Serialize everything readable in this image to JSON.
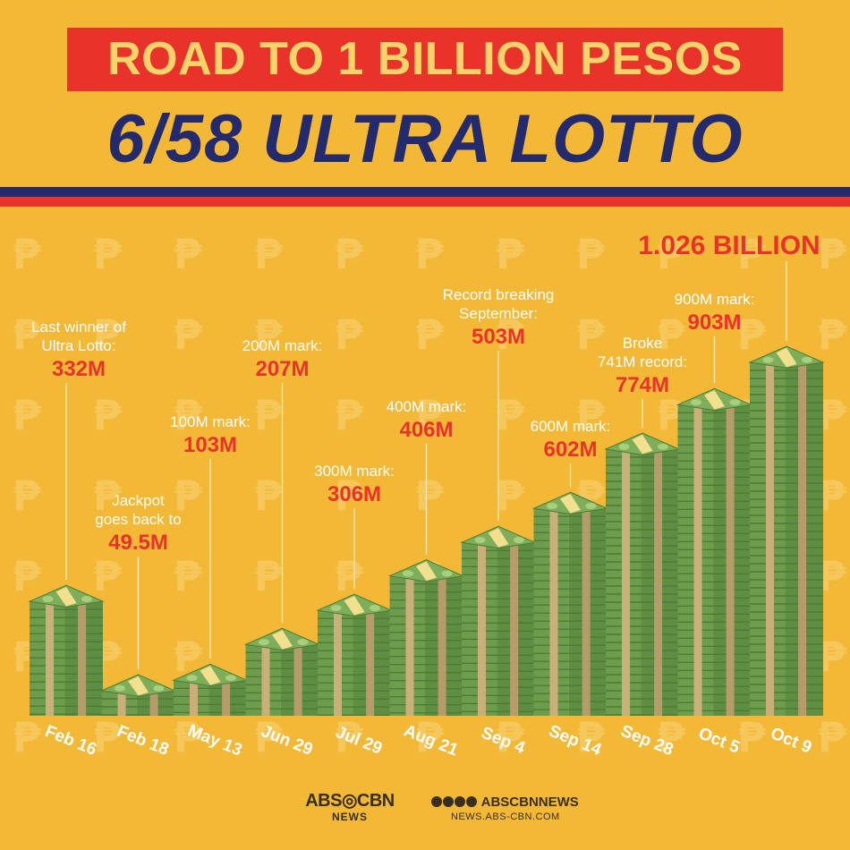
{
  "header": {
    "title": "ROAD TO 1 BILLION PESOS",
    "subtitle": "6/58 ULTRA LOTTO"
  },
  "colors": {
    "background": "#f2b836",
    "banner_red": "#e8322a",
    "title_text": "#f6d46a",
    "navy": "#232b6e",
    "value_red": "#e8322a",
    "cash_green": "#7fae5a",
    "cash_band": "#f3e08e"
  },
  "chart_data": {
    "type": "bar",
    "title": "ROAD TO 1 BILLION PESOS",
    "categories": [
      "Feb 16",
      "Feb 18",
      "May 13",
      "Jun 29",
      "Jul 29",
      "Aug 21",
      "Sep 4",
      "Sep 14",
      "Sep 28",
      "Oct 5",
      "Oct 9"
    ],
    "values": [
      332,
      49.5,
      103,
      207,
      306,
      406,
      503,
      602,
      774,
      903,
      1026
    ],
    "unit": "million pesos",
    "annotations": [
      {
        "label": "Last winner of\nUltra Lotto:",
        "value": "332M"
      },
      {
        "label": "Jackpot\ngoes back to",
        "value": "49.5M"
      },
      {
        "label": "100M mark:",
        "value": "103M"
      },
      {
        "label": "200M mark:",
        "value": "207M"
      },
      {
        "label": "300M mark:",
        "value": "306M"
      },
      {
        "label": "400M mark:",
        "value": "406M"
      },
      {
        "label": "Record breaking\nSeptember:",
        "value": "503M"
      },
      {
        "label": "600M mark:",
        "value": "602M"
      },
      {
        "label": "Broke\n741M record:",
        "value": "774M"
      },
      {
        "label": "900M mark:",
        "value": "903M"
      },
      {
        "label": "",
        "value": "1.026 BILLION"
      }
    ]
  },
  "footer": {
    "logo_top": "ABS◎CBN",
    "logo_bottom": "NEWS",
    "social_handle": "ABSCBNNEWS",
    "site": "NEWS.ABS-CBN.COM"
  }
}
